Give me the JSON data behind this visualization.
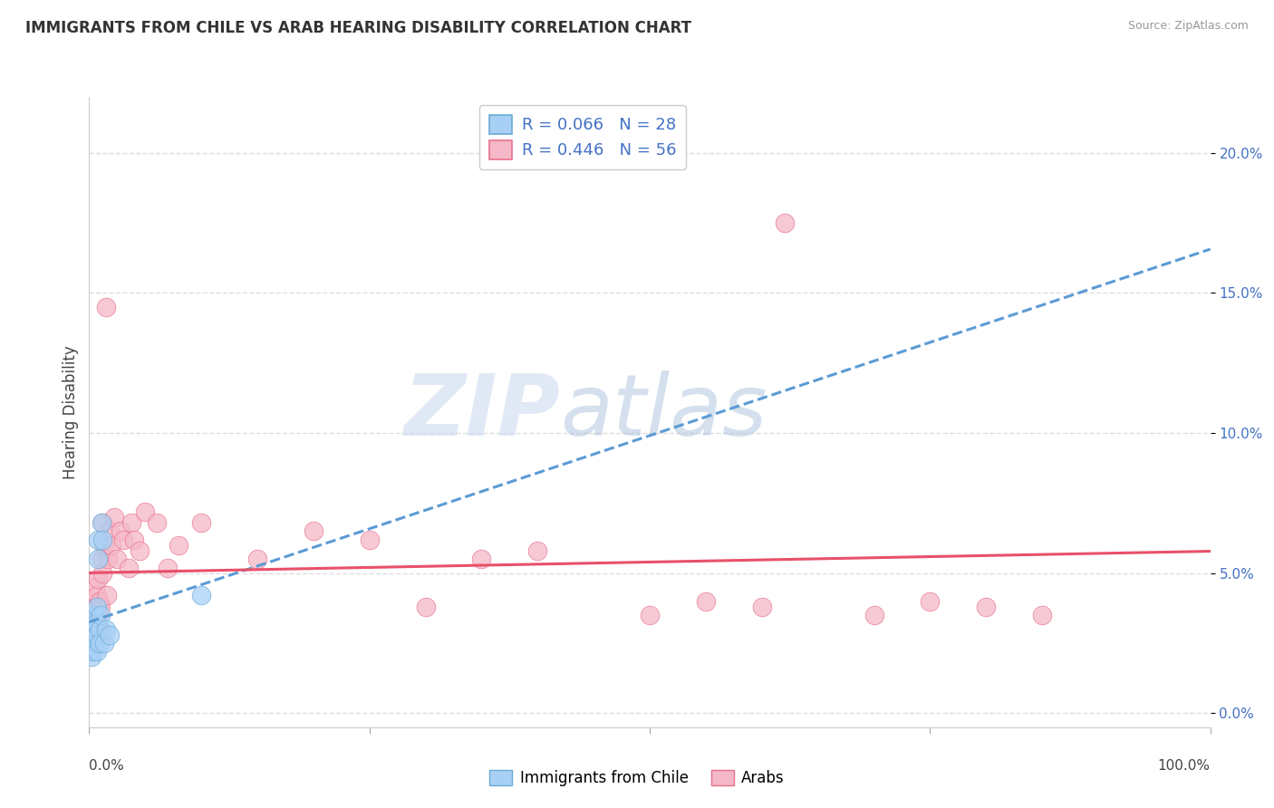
{
  "title": "IMMIGRANTS FROM CHILE VS ARAB HEARING DISABILITY CORRELATION CHART",
  "source": "Source: ZipAtlas.com",
  "ylabel": "Hearing Disability",
  "xlim": [
    0,
    1.0
  ],
  "ylim": [
    -0.005,
    0.22
  ],
  "yticks": [
    0.0,
    0.05,
    0.1,
    0.15,
    0.2
  ],
  "ytick_labels": [
    "0.0%",
    "5.0%",
    "10.0%",
    "15.0%",
    "20.0%"
  ],
  "legend_r_blue": "R = 0.066",
  "legend_n_blue": "N = 28",
  "legend_r_pink": "R = 0.446",
  "legend_n_pink": "N = 56",
  "chile_color": "#A8D0F5",
  "arab_color": "#F5B8C8",
  "chile_edge": "#6AAAD4",
  "arab_edge": "#E8708A",
  "trendline_chile_color": "#5B9BD5",
  "trendline_arab_color": "#E8506A",
  "watermark_zip": "ZIP",
  "watermark_atlas": "atlas",
  "background_color": "#FFFFFF",
  "grid_color": "#DDDDDD",
  "chile_x": [
    0.001,
    0.002,
    0.002,
    0.003,
    0.003,
    0.003,
    0.004,
    0.004,
    0.004,
    0.005,
    0.005,
    0.005,
    0.006,
    0.006,
    0.007,
    0.007,
    0.007,
    0.008,
    0.008,
    0.009,
    0.009,
    0.01,
    0.011,
    0.012,
    0.013,
    0.015,
    0.018,
    0.1
  ],
  "chile_y": [
    0.025,
    0.02,
    0.032,
    0.028,
    0.033,
    0.025,
    0.03,
    0.035,
    0.022,
    0.028,
    0.035,
    0.03,
    0.025,
    0.032,
    0.038,
    0.028,
    0.022,
    0.055,
    0.062,
    0.03,
    0.025,
    0.035,
    0.068,
    0.062,
    0.025,
    0.03,
    0.028,
    0.042
  ],
  "arab_x": [
    0.001,
    0.002,
    0.002,
    0.003,
    0.003,
    0.004,
    0.004,
    0.004,
    0.005,
    0.005,
    0.005,
    0.006,
    0.006,
    0.007,
    0.007,
    0.008,
    0.008,
    0.009,
    0.009,
    0.01,
    0.011,
    0.012,
    0.012,
    0.013,
    0.015,
    0.016,
    0.017,
    0.018,
    0.02,
    0.022,
    0.025,
    0.028,
    0.03,
    0.035,
    0.038,
    0.04,
    0.045,
    0.05,
    0.06,
    0.07,
    0.08,
    0.1,
    0.15,
    0.2,
    0.25,
    0.3,
    0.35,
    0.4,
    0.5,
    0.55,
    0.6,
    0.62,
    0.7,
    0.75,
    0.8,
    0.85
  ],
  "arab_y": [
    0.028,
    0.035,
    0.022,
    0.038,
    0.025,
    0.032,
    0.04,
    0.028,
    0.035,
    0.045,
    0.025,
    0.038,
    0.03,
    0.042,
    0.032,
    0.048,
    0.035,
    0.04,
    0.03,
    0.038,
    0.055,
    0.068,
    0.05,
    0.06,
    0.145,
    0.042,
    0.055,
    0.065,
    0.06,
    0.07,
    0.055,
    0.065,
    0.062,
    0.052,
    0.068,
    0.062,
    0.058,
    0.072,
    0.068,
    0.052,
    0.06,
    0.068,
    0.055,
    0.065,
    0.062,
    0.038,
    0.055,
    0.058,
    0.035,
    0.04,
    0.038,
    0.175,
    0.035,
    0.04,
    0.038,
    0.035
  ]
}
